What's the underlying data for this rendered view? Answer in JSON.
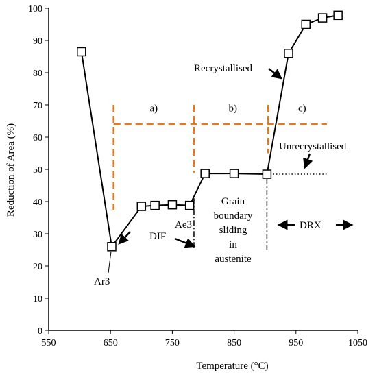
{
  "chart_data": {
    "type": "line",
    "xlabel": "Temperature (°C)",
    "ylabel": "Reduction of Area (%)",
    "xlim": [
      550,
      1050
    ],
    "ylim": [
      0,
      100
    ],
    "x_ticks": [
      550,
      650,
      750,
      850,
      950,
      1050
    ],
    "y_ticks": [
      0,
      10,
      20,
      30,
      40,
      50,
      60,
      70,
      80,
      90,
      100
    ],
    "grid": false,
    "series": [
      {
        "marker": "open-square",
        "color": "#000000",
        "x": [
          603,
          652,
          700,
          722,
          750,
          778,
          803,
          850,
          903,
          938,
          966,
          993,
          1018
        ],
        "y": [
          86.5,
          26,
          38.5,
          38.8,
          39,
          38.8,
          48.7,
          48.7,
          48.5,
          86,
          95,
          97,
          97.8
        ]
      }
    ],
    "guides": {
      "color": "#E07B22",
      "region_boundaries_x": [
        655,
        785,
        905
      ],
      "horizontal_line_y": 64,
      "horizontal_range_x": [
        655,
        1000
      ]
    },
    "region_labels": [
      {
        "text": "a)",
        "x": 720,
        "y": 68
      },
      {
        "text": "b)",
        "x": 848,
        "y": 68
      },
      {
        "text": "c)",
        "x": 960,
        "y": 68
      }
    ],
    "annotations": {
      "recrystallised": "Recrystallised",
      "unrecrystallised": "Unrecrystallised",
      "grain_boundary": [
        "Grain",
        "boundary",
        "sliding",
        "in",
        "austenite"
      ],
      "dif": "DIF",
      "ae3": "Ae3",
      "drx": "DRX",
      "ar3": "Ar3"
    },
    "unrecrystallised_line": {
      "y": 48.5,
      "x_range": [
        903,
        1000
      ]
    }
  }
}
